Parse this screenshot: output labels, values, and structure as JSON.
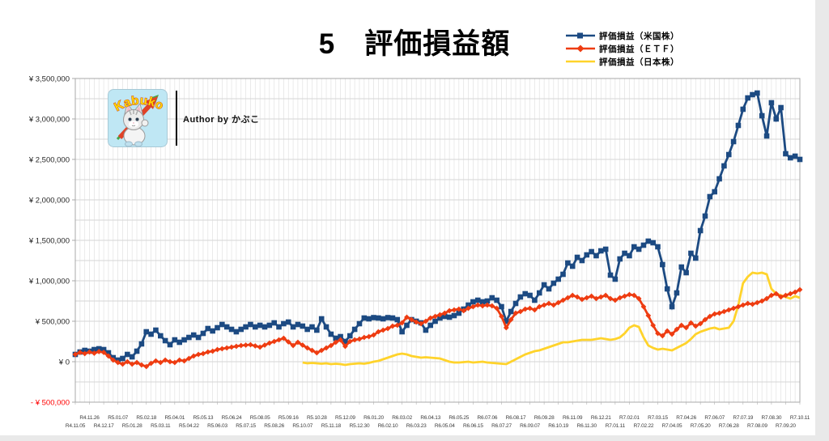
{
  "page": {
    "title": "5　評価損益額",
    "author": "Author by かぶこ",
    "logo_text": "Kabuko"
  },
  "colors": {
    "us_stocks": "#1c4a82",
    "etf": "#ee3c11",
    "japan_stocks": "#ffd32b",
    "negative_axis_label": "#ff0000",
    "gridline": "#d6d6d6",
    "plot_border": "#a8a8a8"
  },
  "chart_data": {
    "type": "line",
    "title": "5　評価損益額",
    "unit": "JPY",
    "ylim": [
      -500000,
      3500000
    ],
    "grid_step_y": 250000,
    "n_points": 154,
    "legend_position": "top-right",
    "grid": "on",
    "y_ticks": [
      {
        "value": 3500000,
        "label": "¥ 3,500,000"
      },
      {
        "value": 3000000,
        "label": "¥ 3,000,000"
      },
      {
        "value": 2500000,
        "label": "¥ 2,500,000"
      },
      {
        "value": 2000000,
        "label": "¥ 2,000,000"
      },
      {
        "value": 1500000,
        "label": "¥ 1,500,000"
      },
      {
        "value": 1000000,
        "label": "¥ 1,000,000"
      },
      {
        "value": 500000,
        "label": "¥ 500,000"
      },
      {
        "value": 0,
        "label": "¥ 0"
      },
      {
        "value": -500000,
        "label": "- ¥ 500,000"
      }
    ],
    "x_label_week_step": 3,
    "x_labels": [
      "R4.11.05",
      "R4.11.26",
      "R4.12.17",
      "R5.01.07",
      "R5.01.28",
      "R5.02.18",
      "R5.03.11",
      "R5.04.01",
      "R5.04.22",
      "R5.05.13",
      "R5.06.03",
      "R5.06.24",
      "R5.07.15",
      "R5.08.05",
      "R5.08.26",
      "R5.09.16",
      "R5.10.07",
      "R5.10.28",
      "R5.11.18",
      "R5.12.09",
      "R5.12.30",
      "R6.01.20",
      "R6.02.10",
      "R6.03.02",
      "R6.03.23",
      "R6.04.13",
      "R6.05.04",
      "R6.05.25",
      "R6.06.15",
      "R6.07.06",
      "R6.07.27",
      "R6.08.17",
      "R6.09.07",
      "R6.09.28",
      "R6.10.19",
      "R6.11.09",
      "R6.11.30",
      "R6.12.21",
      "R7.01.11",
      "R7.02.01",
      "R7.02.22",
      "R7.03.15",
      "R7.04.05",
      "R7.04.26",
      "R7.05.20",
      "R7.06.07",
      "R7.06.28",
      "R7.07.19",
      "R7.08.09",
      "R7.08.30",
      "R7.09.20",
      "R7.10.11"
    ],
    "draw_order": [
      0,
      2,
      1
    ],
    "series": [
      {
        "id": "us_stocks",
        "name": "評価損益（米国株）",
        "color": "#1c4a82",
        "marker": "square",
        "start_index": 0,
        "values": [
          90000,
          120000,
          140000,
          130000,
          150000,
          160000,
          150000,
          110000,
          50000,
          20000,
          40000,
          90000,
          60000,
          130000,
          220000,
          370000,
          340000,
          390000,
          320000,
          260000,
          210000,
          270000,
          240000,
          270000,
          300000,
          330000,
          300000,
          350000,
          410000,
          380000,
          420000,
          460000,
          430000,
          400000,
          370000,
          400000,
          430000,
          460000,
          430000,
          450000,
          430000,
          450000,
          480000,
          430000,
          470000,
          490000,
          430000,
          460000,
          440000,
          400000,
          430000,
          390000,
          530000,
          430000,
          340000,
          290000,
          310000,
          250000,
          320000,
          400000,
          470000,
          540000,
          530000,
          545000,
          540000,
          530000,
          545000,
          540000,
          520000,
          370000,
          450000,
          520000,
          500000,
          480000,
          390000,
          450000,
          500000,
          540000,
          560000,
          550000,
          570000,
          600000,
          650000,
          700000,
          740000,
          760000,
          740000,
          750000,
          790000,
          760000,
          680000,
          500000,
          620000,
          720000,
          800000,
          840000,
          820000,
          760000,
          850000,
          950000,
          900000,
          970000,
          1020000,
          1080000,
          1220000,
          1180000,
          1290000,
          1250000,
          1320000,
          1360000,
          1310000,
          1370000,
          1390000,
          1070000,
          1020000,
          1270000,
          1340000,
          1310000,
          1420000,
          1390000,
          1440000,
          1490000,
          1470000,
          1420000,
          1200000,
          900000,
          680000,
          850000,
          1170000,
          1100000,
          1340000,
          1280000,
          1620000,
          1800000,
          2040000,
          2100000,
          2260000,
          2420000,
          2560000,
          2720000,
          2920000,
          3120000,
          3260000,
          3300000,
          3320000,
          3040000,
          2790000,
          3200000,
          3000000,
          3140000,
          2570000,
          2520000,
          2540000,
          2500000
        ]
      },
      {
        "id": "etf",
        "name": "評価損益（ＥＴＦ）",
        "color": "#ee3c11",
        "marker": "diamond",
        "start_index": 0,
        "values": [
          90000,
          115000,
          100000,
          120000,
          105000,
          125000,
          115000,
          70000,
          20000,
          -10000,
          -30000,
          0,
          -30000,
          -10000,
          -40000,
          -60000,
          -20000,
          10000,
          -10000,
          20000,
          0,
          -10000,
          20000,
          10000,
          40000,
          70000,
          90000,
          100000,
          120000,
          130000,
          150000,
          160000,
          170000,
          180000,
          190000,
          200000,
          205000,
          210000,
          195000,
          180000,
          205000,
          230000,
          250000,
          270000,
          290000,
          245000,
          200000,
          240000,
          205000,
          170000,
          140000,
          110000,
          140000,
          170000,
          200000,
          240000,
          270000,
          190000,
          250000,
          270000,
          280000,
          300000,
          310000,
          330000,
          370000,
          390000,
          410000,
          440000,
          450000,
          480000,
          550000,
          520000,
          490000,
          470000,
          500000,
          540000,
          560000,
          580000,
          600000,
          630000,
          640000,
          650000,
          630000,
          660000,
          680000,
          700000,
          690000,
          700000,
          690000,
          660000,
          560000,
          420000,
          520000,
          600000,
          620000,
          650000,
          660000,
          640000,
          680000,
          700000,
          720000,
          700000,
          730000,
          760000,
          790000,
          820000,
          800000,
          770000,
          790000,
          810000,
          780000,
          800000,
          820000,
          780000,
          760000,
          790000,
          810000,
          830000,
          820000,
          780000,
          680000,
          570000,
          450000,
          350000,
          320000,
          380000,
          340000,
          400000,
          450000,
          420000,
          480000,
          440000,
          470000,
          520000,
          560000,
          590000,
          600000,
          620000,
          640000,
          660000,
          680000,
          700000,
          720000,
          710000,
          730000,
          750000,
          780000,
          820000,
          840000,
          800000,
          820000,
          840000,
          860000,
          890000
        ]
      },
      {
        "id": "japan_stocks",
        "name": "評価損益（日本株）",
        "color": "#ffd32b",
        "marker": "none",
        "start_index": 48,
        "values": [
          -10000,
          -20000,
          -15000,
          -20000,
          -25000,
          -20000,
          -30000,
          -25000,
          -30000,
          -40000,
          -30000,
          -25000,
          -20000,
          -25000,
          -15000,
          0,
          10000,
          30000,
          50000,
          70000,
          90000,
          100000,
          90000,
          70000,
          60000,
          50000,
          55000,
          50000,
          45000,
          40000,
          20000,
          0,
          -10000,
          -10000,
          -5000,
          0,
          -10000,
          -5000,
          0,
          -10000,
          -15000,
          -20000,
          -25000,
          -30000,
          0,
          30000,
          60000,
          90000,
          110000,
          130000,
          140000,
          160000,
          180000,
          200000,
          220000,
          240000,
          240000,
          250000,
          260000,
          270000,
          270000,
          270000,
          280000,
          290000,
          280000,
          270000,
          280000,
          300000,
          350000,
          420000,
          450000,
          430000,
          300000,
          200000,
          170000,
          150000,
          160000,
          150000,
          140000,
          170000,
          200000,
          230000,
          280000,
          340000,
          370000,
          390000,
          410000,
          420000,
          400000,
          410000,
          420000,
          500000,
          700000,
          970000,
          1050000,
          1100000,
          1090000,
          1100000,
          1080000,
          900000,
          840000,
          820000,
          800000,
          780000,
          810000,
          790000
        ]
      }
    ]
  }
}
